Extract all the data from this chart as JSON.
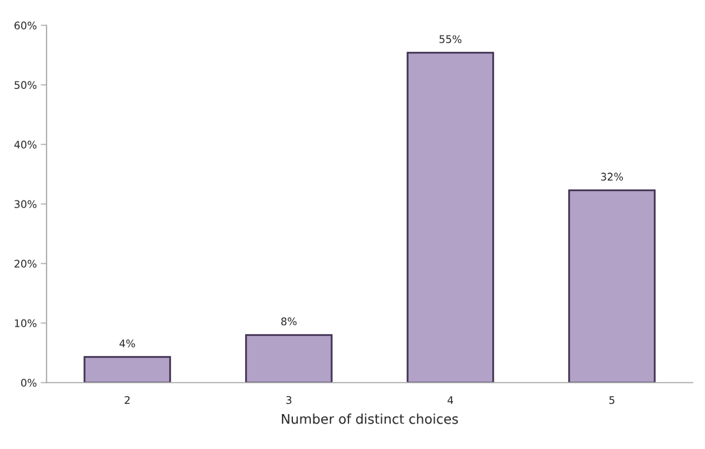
{
  "chart_data": {
    "type": "bar",
    "xlabel": "Number of distinct choices",
    "categories": [
      "2",
      "3",
      "4",
      "5"
    ],
    "values": [
      4.3,
      8.0,
      55.4,
      32.3
    ],
    "value_labels": [
      "4%",
      "8%",
      "55%",
      "32%"
    ],
    "color": "#b3a2c7",
    "ylim": [
      0,
      60
    ],
    "yticks": [
      {
        "value": 0,
        "label": "0%"
      },
      {
        "value": 10,
        "label": "10%"
      },
      {
        "value": 20,
        "label": "20%"
      },
      {
        "value": 30,
        "label": "30%"
      },
      {
        "value": 40,
        "label": "40%"
      },
      {
        "value": 50,
        "label": "50%"
      },
      {
        "value": 60,
        "label": "60%"
      }
    ],
    "grid": false
  }
}
